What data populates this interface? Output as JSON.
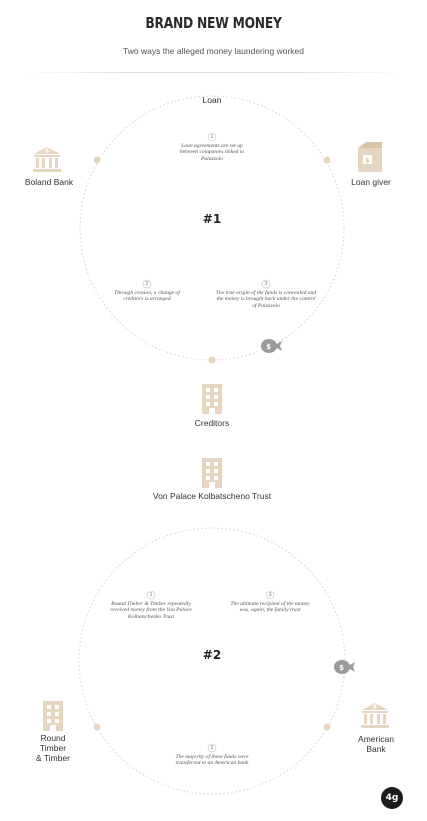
{
  "header": {
    "title": "BRAND NEW MONEY",
    "subtitle": "Two ways the alleged money laundering worked"
  },
  "scheme1": {
    "marker": "#1",
    "loan_label": "Loan",
    "left_label": "Boland Bank",
    "right_label": "Loan giver",
    "step1_num": "1",
    "step1_text": "Loan agreements are set up between companies linked to Palazzolo",
    "step2_num": "2",
    "step2_text": "Through cession, a change of creditors is arranged",
    "step3_num": "3",
    "step3_text": "The true origin of the funds is concealed and the money is brought back under the control of Palazzolo",
    "bank_icon": "bank-icon",
    "money_icon": "money-bag-icon"
  },
  "middle": {
    "creditors_label": "Creditors",
    "trust_label": "Von Palace Kolbatscheno Trust",
    "icon": "building-icon"
  },
  "scheme2": {
    "marker": "#2",
    "left_label_line1": "Round",
    "left_label_line2": "Timber",
    "left_label_line3": "& Timber",
    "right_label_line1": "American",
    "right_label_line2": "Bank",
    "step1_num": "1",
    "step1_text": "Round Timber & Timber repeatedly received money from the Von Palace Kolbatschenko Trust",
    "step2_num": "2",
    "step2_text": "The majority of these funds were transferred to an American bank",
    "step3_num": "3",
    "step3_text": "The ultimate recipient of the money was, again, the family trust"
  },
  "footer": {
    "logo_text": "4g"
  },
  "colors": {
    "accent": "#e6d6c1",
    "accent_dark": "#d9c4a8",
    "circle": "#c8c8c8",
    "money": "#9a9a9a"
  }
}
